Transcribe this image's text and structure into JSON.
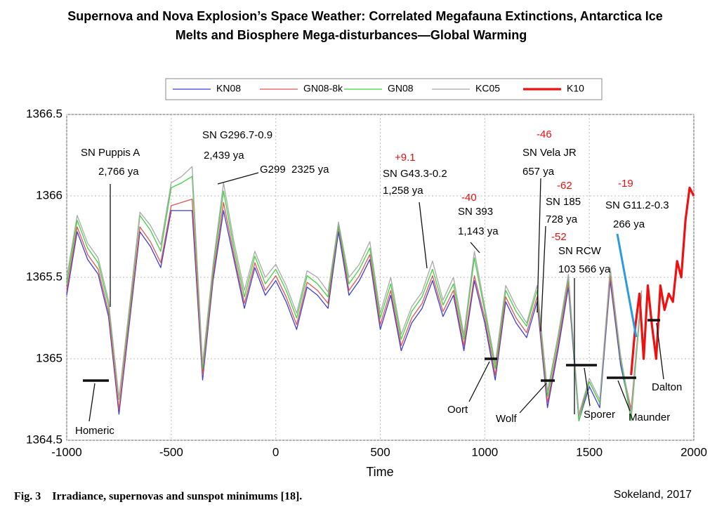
{
  "chart_data": {
    "type": "line",
    "title": "Supernova and Nova Explosion’s Space Weather: Correlated Megafauna Extinctions, Antarctica Ice",
    "subtitle": "Melts and Biosphere Mega-disturbances—Global Warming",
    "x_label": "Time",
    "caption": "Fig. 3    Irradiance, supernovas and sunspot minimums [18].",
    "credit": "Sokeland, 2017",
    "xlim": [
      -1000,
      2000
    ],
    "xticks": [
      -1000,
      -500,
      0,
      500,
      1000,
      1500,
      2000
    ],
    "ylim": [
      1364.5,
      1366.5
    ],
    "yticks": [
      1364.5,
      1365,
      1365.5,
      1366,
      1366.5
    ],
    "grid": true,
    "legend": "top",
    "series": [
      {
        "name": "KN08",
        "color": "#3c3cd8",
        "width": 1.3,
        "x": [
          -1000,
          -950,
          -900,
          -850,
          -800,
          -750,
          -700,
          -650,
          -600,
          -550,
          -500,
          -450,
          -400,
          -350,
          -300,
          -250,
          -200,
          -150,
          -100,
          -50,
          0,
          50,
          100,
          150,
          200,
          250,
          300,
          350,
          400,
          450,
          500,
          550,
          600,
          650,
          700,
          750,
          800,
          850,
          900,
          950,
          1000,
          1050,
          1100,
          1150,
          1200,
          1250,
          1300,
          1350,
          1400,
          1450,
          1500,
          1550,
          1600,
          1650,
          1700,
          1750
        ],
        "values": [
          1365.39,
          1365.78,
          1365.61,
          1365.52,
          1365.26,
          1364.66,
          1365.22,
          1365.78,
          1365.69,
          1365.56,
          1365.91,
          1365.91,
          1365.91,
          1364.87,
          1365.48,
          1365.91,
          1365.61,
          1365.31,
          1365.56,
          1365.39,
          1365.48,
          1365.35,
          1365.18,
          1365.44,
          1365.39,
          1365.31,
          1365.78,
          1365.39,
          1365.48,
          1365.61,
          1365.18,
          1365.39,
          1365.05,
          1365.22,
          1365.31,
          1365.48,
          1365.26,
          1365.39,
          1365.05,
          1365.48,
          1365.22,
          1364.87,
          1365.35,
          1365.22,
          1365.13,
          1365.35,
          1364.7,
          1365.05,
          1365.44,
          1364.62,
          1364.83,
          1364.7,
          1365.48,
          1364.96,
          1364.66,
          1365.39
        ]
      },
      {
        "name": "GN08-8k",
        "color": "#e05555",
        "width": 1.3,
        "x": [
          -1000,
          -950,
          -900,
          -850,
          -800,
          -750,
          -700,
          -650,
          -600,
          -550,
          -500,
          -450,
          -400,
          -350,
          -300,
          -250,
          -200,
          -150,
          -100,
          -50,
          0,
          50,
          100,
          150,
          200,
          250,
          300,
          350,
          400,
          450,
          500,
          550,
          600,
          650,
          700,
          750,
          800,
          850,
          900,
          950,
          1000,
          1050,
          1100,
          1150,
          1200,
          1250,
          1300,
          1350,
          1400,
          1450,
          1500,
          1550,
          1600,
          1650,
          1700,
          1750
        ],
        "values": [
          1365.42,
          1365.81,
          1365.64,
          1365.55,
          1365.29,
          1364.69,
          1365.25,
          1365.81,
          1365.72,
          1365.59,
          1365.94,
          1365.96,
          1365.98,
          1364.9,
          1365.51,
          1365.96,
          1365.64,
          1365.34,
          1365.59,
          1365.42,
          1365.51,
          1365.38,
          1365.21,
          1365.47,
          1365.42,
          1365.34,
          1365.81,
          1365.42,
          1365.51,
          1365.64,
          1365.21,
          1365.42,
          1365.08,
          1365.25,
          1365.34,
          1365.51,
          1365.29,
          1365.42,
          1365.08,
          1365.51,
          1365.25,
          1364.9,
          1365.38,
          1365.25,
          1365.16,
          1365.38,
          1364.73,
          1365.08,
          1365.47,
          1364.65,
          1364.86,
          1364.73,
          1365.51,
          1364.99,
          1364.69,
          1365.42
        ]
      },
      {
        "name": "GN08",
        "color": "#3fd23f",
        "width": 1.3,
        "x": [
          -1000,
          -950,
          -900,
          -850,
          -800,
          -750,
          -700,
          -650,
          -600,
          -550,
          -500,
          -450,
          -400,
          -350,
          -300,
          -250,
          -200,
          -150,
          -100,
          -50,
          0,
          50,
          100,
          150,
          200,
          250,
          300,
          350,
          400,
          450,
          500,
          550,
          600,
          650,
          700,
          750,
          800,
          850,
          900,
          950,
          1000,
          1050,
          1100,
          1150,
          1200,
          1250,
          1300,
          1350,
          1400,
          1450,
          1500,
          1550,
          1600,
          1650,
          1700,
          1750
        ],
        "values": [
          1365.46,
          1365.85,
          1365.68,
          1365.59,
          1365.33,
          1364.75,
          1365.29,
          1365.88,
          1365.79,
          1365.66,
          1366.05,
          1366.08,
          1366.12,
          1364.94,
          1365.55,
          1366.03,
          1365.68,
          1365.38,
          1365.63,
          1365.46,
          1365.55,
          1365.42,
          1365.25,
          1365.51,
          1365.46,
          1365.38,
          1365.82,
          1365.46,
          1365.55,
          1365.68,
          1365.25,
          1365.46,
          1365.12,
          1365.29,
          1365.38,
          1365.55,
          1365.33,
          1365.46,
          1365.12,
          1365.62,
          1365.29,
          1364.94,
          1365.42,
          1365.29,
          1365.2,
          1365.42,
          1364.77,
          1365.12,
          1365.5,
          1364.62,
          1364.86,
          1364.73,
          1365.55,
          1365,
          1364.62,
          1365.4
        ]
      },
      {
        "name": "KC05",
        "color": "#a8a8a8",
        "width": 1.3,
        "x": [
          -1000,
          -950,
          -900,
          -850,
          -800,
          -750,
          -700,
          -650,
          -600,
          -550,
          -500,
          -450,
          -400,
          -350,
          -300,
          -250,
          -200,
          -150,
          -100,
          -50,
          0,
          50,
          100,
          150,
          200,
          250,
          300,
          350,
          400,
          450,
          500,
          550,
          600,
          650,
          700,
          750,
          800,
          850,
          900,
          950,
          1000,
          1050,
          1100,
          1150,
          1200,
          1250,
          1300,
          1350,
          1400,
          1450,
          1500,
          1550,
          1600,
          1650,
          1700,
          1750
        ],
        "values": [
          1365.5,
          1365.88,
          1365.71,
          1365.62,
          1365.36,
          1364.76,
          1365.32,
          1365.9,
          1365.82,
          1365.7,
          1366.08,
          1366.12,
          1366.18,
          1364.97,
          1365.58,
          1366.08,
          1365.72,
          1365.42,
          1365.66,
          1365.5,
          1365.58,
          1365.45,
          1365.28,
          1365.54,
          1365.5,
          1365.41,
          1365.84,
          1365.5,
          1365.58,
          1365.72,
          1365.28,
          1365.5,
          1365.15,
          1365.32,
          1365.41,
          1365.6,
          1365.36,
          1365.5,
          1365.15,
          1365.66,
          1365.32,
          1364.97,
          1365.45,
          1365.32,
          1365.22,
          1365.45,
          1364.8,
          1365.14,
          1365.52,
          1364.66,
          1364.88,
          1364.75,
          1365.56,
          1365.02,
          1364.66,
          1365.42
        ]
      },
      {
        "name": "K10",
        "color": "#ee1111",
        "width": 3.2,
        "x": [
          1700,
          1720,
          1740,
          1760,
          1780,
          1800,
          1820,
          1840,
          1860,
          1880,
          1900,
          1920,
          1940,
          1960,
          1980,
          2000
        ],
        "values": [
          1364.9,
          1365.2,
          1365.4,
          1365,
          1365.45,
          1365.2,
          1365,
          1365.45,
          1365.3,
          1365.4,
          1365.35,
          1365.6,
          1365.5,
          1365.85,
          1366.05,
          1366
        ]
      }
    ],
    "annotations": [
      {
        "text": "SN Puppis A",
        "color": "#000000"
      },
      {
        "text": "2,766 ya",
        "color": "#000000"
      },
      {
        "text": "SN G296.7-0.9",
        "color": "#000000"
      },
      {
        "text": "2,439 ya",
        "color": "#000000"
      },
      {
        "text": "G299  2325 ya",
        "color": "#000000"
      },
      {
        "text": "+9.1",
        "color": "#e01010"
      },
      {
        "text": "SN G43.3-0.2",
        "color": "#000000"
      },
      {
        "text": "1,258 ya",
        "color": "#000000"
      },
      {
        "text": "-40",
        "color": "#e01010"
      },
      {
        "text": "SN 393",
        "color": "#000000"
      },
      {
        "text": "1,143 ya",
        "color": "#000000"
      },
      {
        "text": "-46",
        "color": "#e01010"
      },
      {
        "text": "SN Vela JR",
        "color": "#000000"
      },
      {
        "text": "657 ya",
        "color": "#000000"
      },
      {
        "text": "-62",
        "color": "#e01010"
      },
      {
        "text": "SN 185",
        "color": "#000000"
      },
      {
        "text": "728 ya",
        "color": "#000000"
      },
      {
        "text": "-52",
        "color": "#e01010"
      },
      {
        "text": "SN RCW",
        "color": "#000000"
      },
      {
        "text": "103 566 ya",
        "color": "#000000"
      },
      {
        "text": "-19",
        "color": "#e01010"
      },
      {
        "text": "SN G11.2-0.3",
        "color": "#000000"
      },
      {
        "text": "266 ya",
        "color": "#000000"
      },
      {
        "text": "Homeric",
        "color": "#000000"
      },
      {
        "text": "Oort",
        "color": "#000000"
      },
      {
        "text": "Wolf",
        "color": "#000000"
      },
      {
        "text": "Sporer",
        "color": "#000000"
      },
      {
        "text": "Maunder",
        "color": "#000000"
      },
      {
        "text": "Dalton",
        "color": "#000000"
      }
    ]
  }
}
